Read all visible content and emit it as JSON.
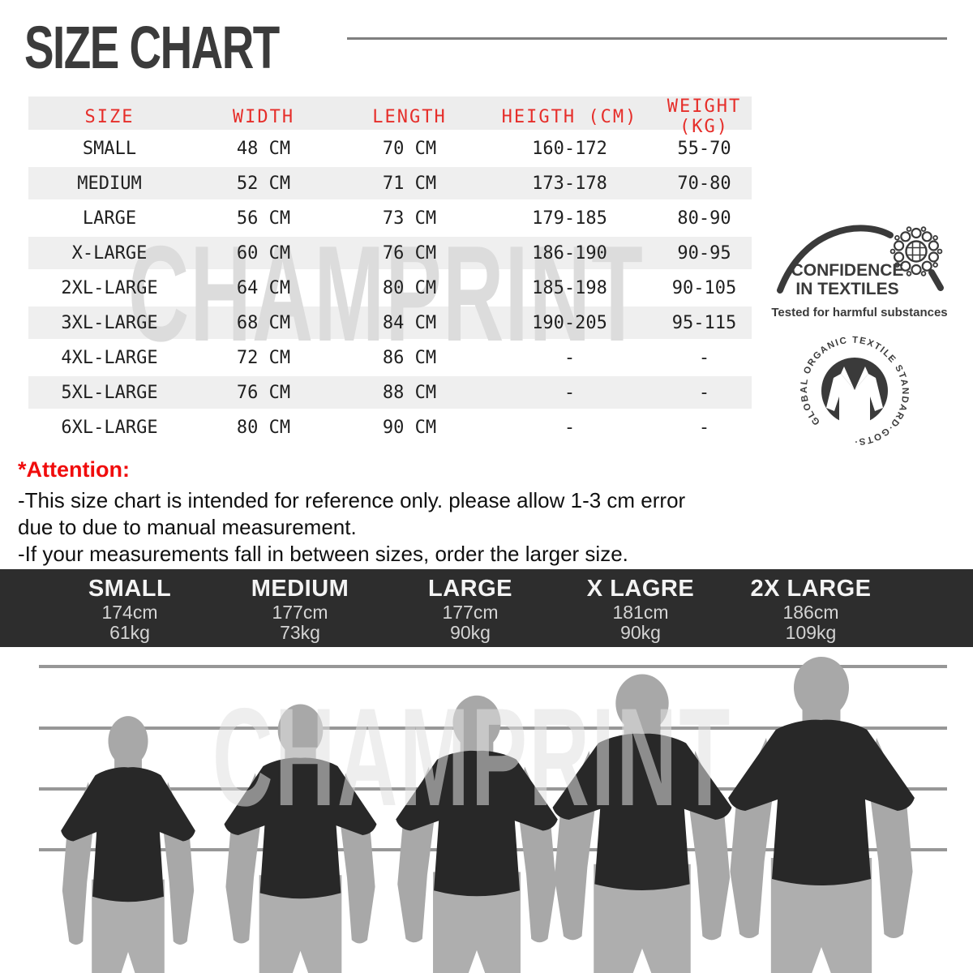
{
  "colors": {
    "table_header_red": "#e62e2a",
    "attention_red": "#f00c0c",
    "band_bg": "#2d2d2d",
    "shirt_black": "#282828",
    "skin_gray": "#a8a8a8",
    "pants_gray": "#aeaeae",
    "line_gray": "#979797"
  },
  "header": {
    "title": "SIZE CHART"
  },
  "watermark": {
    "text": "CHAMPRINT"
  },
  "size_table": {
    "columns": [
      "SIZE",
      "WIDTH",
      "LENGTH",
      "HEIGTH (CM)",
      "WEIGHT (KG)"
    ],
    "rows": [
      [
        "SMALL",
        "48 CM",
        "70 CM",
        "160-172",
        "55-70"
      ],
      [
        "MEDIUM",
        "52 CM",
        "71 CM",
        "173-178",
        "70-80"
      ],
      [
        "LARGE",
        "56 CM",
        "73 CM",
        "179-185",
        "80-90"
      ],
      [
        "X-LARGE",
        "60 CM",
        "76 CM",
        "186-190",
        "90-95"
      ],
      [
        "2XL-LARGE",
        "64 CM",
        "80 CM",
        "185-198",
        "90-105"
      ],
      [
        "3XL-LARGE",
        "68 CM",
        "84 CM",
        "190-205",
        "95-115"
      ],
      [
        "4XL-LARGE",
        "72 CM",
        "86 CM",
        "-",
        "-"
      ],
      [
        "5XL-LARGE",
        "76 CM",
        "88 CM",
        "-",
        "-"
      ],
      [
        "6XL-LARGE",
        "80 CM",
        "90 CM",
        "-",
        "-"
      ]
    ]
  },
  "certifications": {
    "oeko_tex": {
      "line1": "CONFIDENCE",
      "line2": "IN TEXTILES",
      "subtitle": "Tested for harmful substances"
    },
    "gots": {
      "ring_text": "GLOBAL ORGANIC TEXTILE STANDARD·GOTS·"
    }
  },
  "attention": {
    "heading": "*Attention:",
    "lines": [
      "-This size chart is intended for reference only. please allow 1-3 cm error",
      "due to due to manual measurement.",
      "-If your measurements fall in between sizes, order the larger size."
    ]
  },
  "size_guide": {
    "columns": [
      {
        "size": "SMALL",
        "height": "174cm",
        "weight": "61kg"
      },
      {
        "size": "MEDIUM",
        "height": "177cm",
        "weight": "73kg"
      },
      {
        "size": "LARGE",
        "height": "177cm",
        "weight": "90kg"
      },
      {
        "size": "X LAGRE",
        "height": "181cm",
        "weight": "90kg"
      },
      {
        "size": "2X LARGE",
        "height": "186cm",
        "weight": "109kg"
      }
    ]
  }
}
